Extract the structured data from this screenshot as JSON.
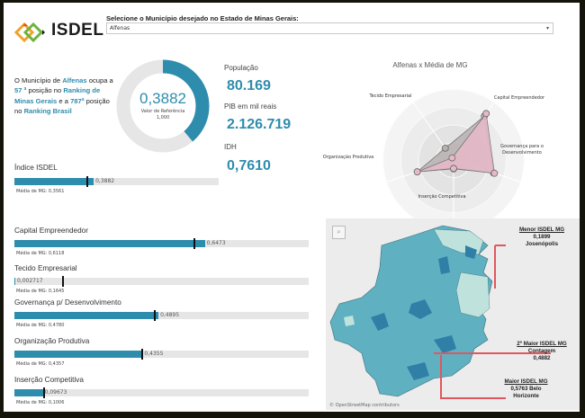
{
  "header": {
    "logo_text": "ISDEL",
    "selector_label": "Selecione o Município desejado no Estado de Minas Gerais:",
    "selector_value": "Alfenas",
    "selector_icon": "dropdown-arrow-icon"
  },
  "ranking": {
    "p1": "O Município de ",
    "city": "Alfenas",
    "p2": " ocupa a ",
    "mg_rank": "57 ª",
    "p3": " posição no ",
    "mg_label": "Ranking de Minas Gerais",
    "p4": " e a ",
    "br_rank": "787ª",
    "p5": " posição no ",
    "br_label": "Ranking Brasil"
  },
  "donut": {
    "value_label": "0,3882",
    "value": 0.3882,
    "reference_label": "Valor de Referência",
    "reference_value": "1,000",
    "colors": {
      "fill": "#2e8cad",
      "track": "#e6e6e6"
    }
  },
  "kpis": [
    {
      "label": "População",
      "value": "80.169"
    },
    {
      "label": "PIB em mil reais",
      "value": "2.126.719"
    },
    {
      "label": "IDH",
      "value": "0,7610"
    }
  ],
  "isdel_bar": {
    "title": "Índice ISDEL",
    "value": 0.3882,
    "value_label": "0,3882",
    "avg": 0.3561,
    "avg_label": "Média de MG: 0,3561"
  },
  "indicator_bars": [
    {
      "title": "Capital Empreendedor",
      "value": 0.6473,
      "value_label": "0,6473",
      "avg": 0.6118,
      "avg_label": "Média de MG: 0,6118"
    },
    {
      "title": "Tecido Empresarial",
      "value": 0.002717,
      "value_label": "0,002717",
      "avg": 0.1645,
      "avg_label": "Média de MG: 0,1645"
    },
    {
      "title": "Governança p/ Desenvolvimento",
      "value": 0.4895,
      "value_label": "0,4895",
      "avg": 0.478,
      "avg_label": "Média de MG: 0,4780"
    },
    {
      "title": "Organização Produtiva",
      "value": 0.4355,
      "value_label": "0,4355",
      "avg": 0.4357,
      "avg_label": "Média de MG: 0,4357"
    },
    {
      "title": "Inserção Competitiva",
      "value": 0.09673,
      "value_label": "0,09673",
      "avg": 0.1006,
      "avg_label": "Média de MG: 0,1006"
    }
  ],
  "radar": {
    "title": "Alfenas x Média de MG",
    "axes": [
      "Capital Empreendedor",
      "Governança para o Desenvolvimento",
      "Inserção Competitiva",
      "Organização Produtiva",
      "Tecido Empresarial"
    ],
    "series": [
      {
        "name": "Alfenas",
        "values": [
          0.6473,
          0.4895,
          0.09673,
          0.4355,
          0.002717
        ],
        "color": "#e7b9c8"
      },
      {
        "name": "Média de MG",
        "values": [
          0.6118,
          0.478,
          0.1006,
          0.4357,
          0.1645
        ],
        "color": "#b7b0b0"
      }
    ]
  },
  "map": {
    "credit": "© OpenStreetMap contributors",
    "annotations": [
      {
        "title": "Menor ISDEL MG",
        "lines": [
          "0,1899",
          "Josenópolis"
        ]
      },
      {
        "title": "2º Maior ISDEL MG",
        "title_rest": "Contagem",
        "lines": [
          "0,4882"
        ]
      },
      {
        "title": "Maior ISDEL MG",
        "lines": [
          "0,5763 Belo",
          "Horizonte"
        ]
      }
    ],
    "colors": {
      "light": "#bfe3dc",
      "mid": "#5fb0c0",
      "dark": "#2f7fa6",
      "annotation_line": "#e0575f"
    }
  }
}
